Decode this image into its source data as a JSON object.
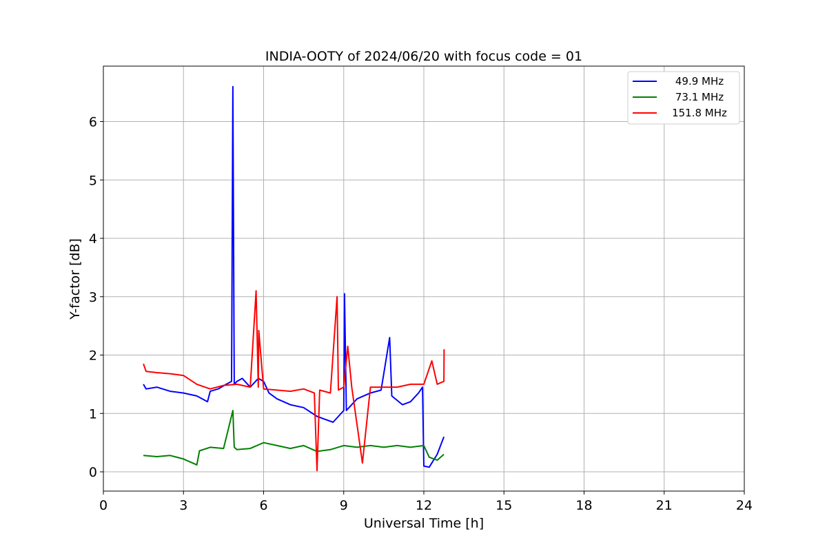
{
  "chart_data": {
    "type": "line",
    "title": "INDIA-OOTY of 2024/06/20 with focus code = 01",
    "xlabel": "Universal Time [h]",
    "ylabel": "Y-factor [dB]",
    "xlim": [
      0,
      24
    ],
    "ylim": [
      -0.33,
      6.95
    ],
    "xticks": [
      0,
      3,
      6,
      9,
      12,
      15,
      18,
      21,
      24
    ],
    "yticks": [
      0,
      1,
      2,
      3,
      4,
      5,
      6
    ],
    "grid": true,
    "legend_position": "top-right",
    "series": [
      {
        "name": "49.9 MHz",
        "color": "#0000ff",
        "x": [
          1.5,
          1.6,
          2.0,
          2.5,
          3.0,
          3.5,
          3.9,
          4.0,
          4.3,
          4.6,
          4.8,
          4.85,
          4.9,
          5.0,
          5.2,
          5.5,
          5.8,
          6.0,
          6.2,
          6.5,
          7.0,
          7.5,
          8.0,
          8.3,
          8.6,
          9.0,
          9.03,
          9.1,
          9.5,
          10.0,
          10.4,
          10.72,
          10.8,
          11.2,
          11.5,
          11.8,
          11.95,
          12.0,
          12.2,
          12.5,
          12.75
        ],
        "y": [
          1.5,
          1.42,
          1.45,
          1.38,
          1.35,
          1.3,
          1.2,
          1.38,
          1.42,
          1.5,
          1.55,
          6.6,
          1.5,
          1.55,
          1.6,
          1.45,
          1.6,
          1.55,
          1.35,
          1.25,
          1.15,
          1.1,
          0.95,
          0.9,
          0.85,
          1.05,
          3.05,
          1.05,
          1.25,
          1.35,
          1.4,
          2.3,
          1.3,
          1.15,
          1.2,
          1.35,
          1.45,
          0.1,
          0.08,
          0.3,
          0.6
        ]
      },
      {
        "name": "73.1 MHz",
        "color": "#008000",
        "x": [
          1.5,
          2.0,
          2.5,
          3.0,
          3.5,
          3.6,
          4.0,
          4.5,
          4.85,
          4.9,
          5.0,
          5.5,
          6.0,
          6.5,
          7.0,
          7.5,
          8.0,
          8.5,
          9.0,
          9.5,
          10.0,
          10.5,
          11.0,
          11.5,
          12.0,
          12.2,
          12.5,
          12.75
        ],
        "y": [
          0.28,
          0.26,
          0.28,
          0.22,
          0.12,
          0.36,
          0.42,
          0.4,
          1.05,
          0.42,
          0.38,
          0.4,
          0.5,
          0.45,
          0.4,
          0.45,
          0.35,
          0.38,
          0.45,
          0.42,
          0.45,
          0.42,
          0.45,
          0.42,
          0.45,
          0.25,
          0.2,
          0.3
        ]
      },
      {
        "name": "151.8 MHz",
        "color": "#ff0000",
        "x": [
          1.5,
          1.6,
          2.0,
          2.5,
          3.0,
          3.5,
          4.0,
          4.5,
          5.0,
          5.5,
          5.72,
          5.8,
          5.82,
          6.0,
          6.5,
          7.0,
          7.5,
          7.9,
          8.0,
          8.1,
          8.5,
          8.75,
          8.8,
          9.0,
          9.15,
          9.3,
          9.7,
          10.0,
          10.5,
          11.0,
          11.5,
          12.0,
          12.3,
          12.5,
          12.75,
          12.76
        ],
        "y": [
          1.85,
          1.72,
          1.7,
          1.68,
          1.65,
          1.5,
          1.42,
          1.48,
          1.5,
          1.45,
          3.1,
          1.45,
          2.42,
          1.42,
          1.4,
          1.38,
          1.42,
          1.35,
          0.02,
          1.4,
          1.35,
          3.0,
          1.4,
          1.45,
          2.15,
          1.45,
          0.15,
          1.45,
          1.45,
          1.45,
          1.5,
          1.5,
          1.9,
          1.5,
          1.55,
          2.1
        ]
      }
    ]
  }
}
